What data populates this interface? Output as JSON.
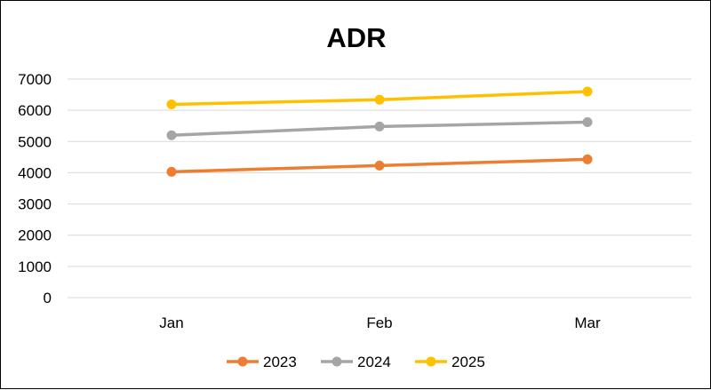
{
  "chart_data": {
    "type": "line",
    "title": "ADR",
    "categories": [
      "Jan",
      "Feb",
      "Mar"
    ],
    "ylim": [
      0,
      7000
    ],
    "yticks": [
      0,
      1000,
      2000,
      3000,
      4000,
      5000,
      6000,
      7000
    ],
    "grid": true,
    "legend_position": "bottom",
    "series": [
      {
        "name": "2023",
        "color": "#ED7D31",
        "values": [
          4030,
          4230,
          4430
        ]
      },
      {
        "name": "2024",
        "color": "#A5A5A5",
        "values": [
          5200,
          5480,
          5620
        ]
      },
      {
        "name": "2025",
        "color": "#FFC000",
        "values": [
          6190,
          6340,
          6600
        ]
      }
    ]
  }
}
